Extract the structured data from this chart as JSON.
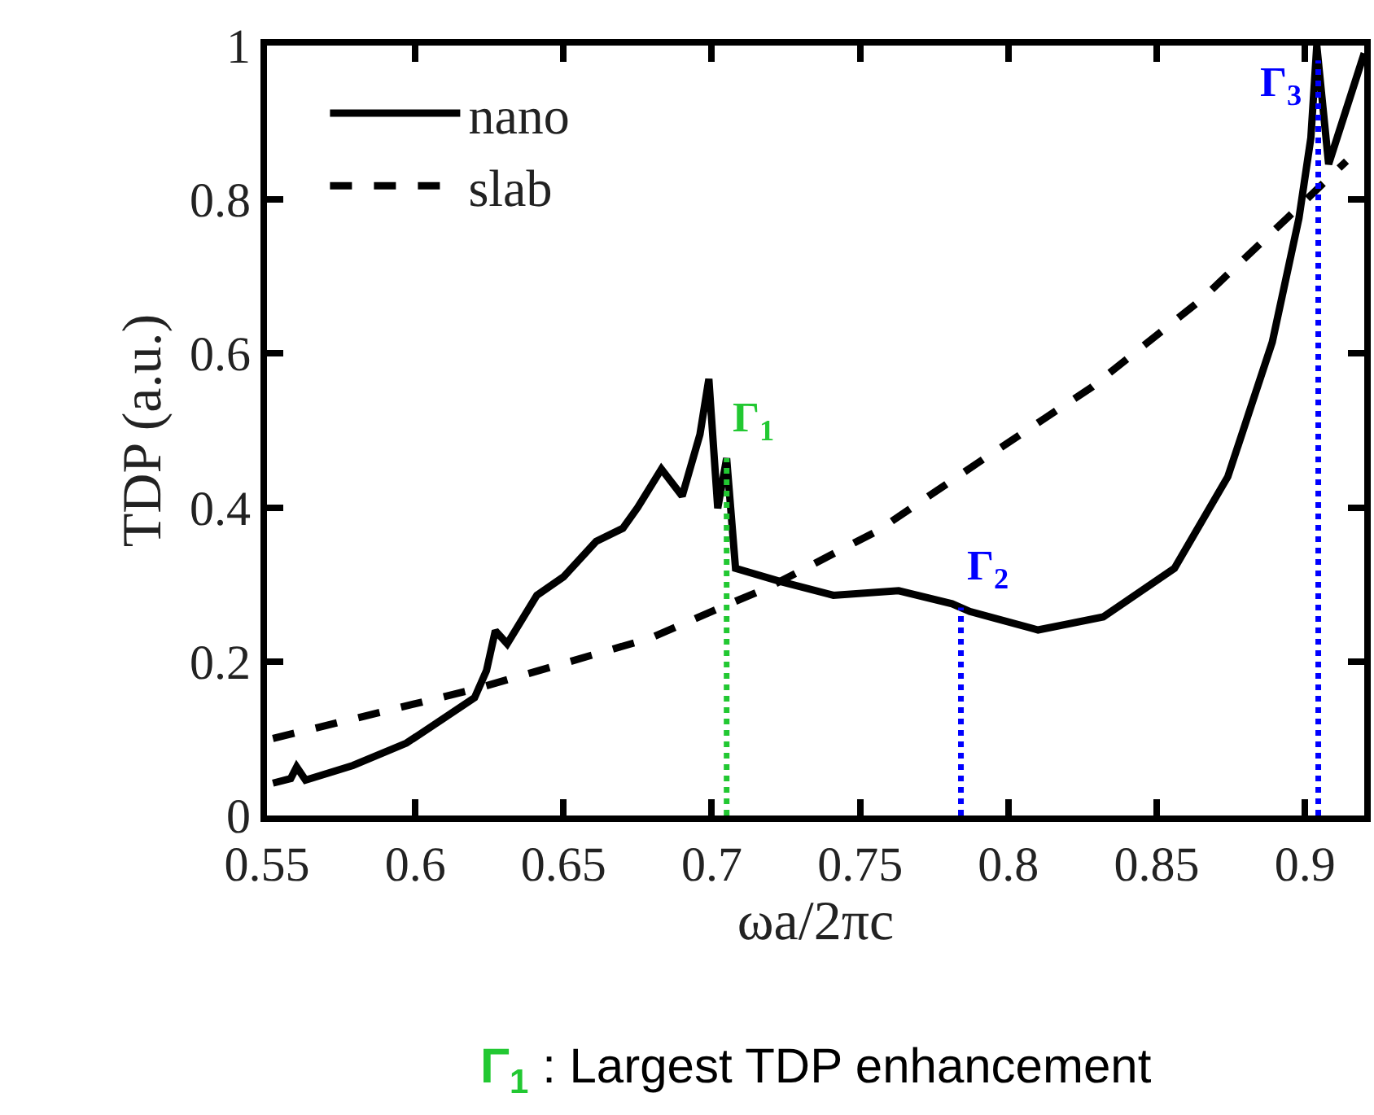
{
  "chart_data": {
    "type": "line",
    "xlabel": "ωa/2πc",
    "ylabel": "TDP (a.u.)",
    "xlim": [
      0.55,
      0.92
    ],
    "xticks": [
      0.55,
      0.6,
      0.65,
      0.7,
      0.75,
      0.8,
      0.85,
      0.9
    ],
    "ylim": [
      0,
      1
    ],
    "yticks": [
      0,
      0.2,
      0.4,
      0.6,
      0.8,
      1
    ],
    "legend": "top left",
    "marker": "none",
    "series": [
      {
        "name": "nano",
        "color": "#000000",
        "line_style": "solid",
        "x": [
          0.552,
          0.558,
          0.56,
          0.563,
          0.579,
          0.597,
          0.608,
          0.62,
          0.624,
          0.627,
          0.631,
          0.641,
          0.65,
          0.661,
          0.67,
          0.675,
          0.683,
          0.69,
          0.696,
          0.699,
          0.702,
          0.705,
          0.708,
          0.723,
          0.741,
          0.763,
          0.781,
          0.787,
          0.81,
          0.832,
          0.856,
          0.874,
          0.889,
          0.898,
          0.902,
          0.904,
          0.908,
          0.92
        ],
        "values": [
          0.042,
          0.048,
          0.063,
          0.046,
          0.065,
          0.094,
          0.122,
          0.153,
          0.188,
          0.24,
          0.223,
          0.286,
          0.31,
          0.356,
          0.373,
          0.4,
          0.45,
          0.415,
          0.495,
          0.567,
          0.399,
          0.464,
          0.321,
          0.304,
          0.286,
          0.292,
          0.275,
          0.265,
          0.241,
          0.258,
          0.321,
          0.44,
          0.615,
          0.776,
          0.88,
          1.0,
          0.846,
          0.99
        ]
      },
      {
        "name": "slab",
        "color": "#000000",
        "line_style": "dashed",
        "x": [
          0.552,
          0.62,
          0.679,
          0.706,
          0.719,
          0.756,
          0.792,
          0.828,
          0.865,
          0.894,
          0.914
        ],
        "values": [
          0.1,
          0.164,
          0.23,
          0.275,
          0.296,
          0.37,
          0.464,
          0.556,
          0.67,
          0.776,
          0.85
        ]
      }
    ],
    "ref_lines": [
      {
        "axis": "x",
        "value": 0.705,
        "label": "Γ$_{1}$",
        "color": "#22c832",
        "line_style": "dotted"
      },
      {
        "axis": "x",
        "value": 0.784,
        "label": "Γ$_{2}$",
        "color": "#0000ff",
        "line_style": "dotted"
      },
      {
        "axis": "x",
        "value": 0.9045,
        "label": "Γ$_{3}$",
        "color": "#0000ff",
        "line_style": "dotted"
      }
    ],
    "annotations": [
      "Γ$_{1}$ : Largest TDP enhancement"
    ]
  }
}
